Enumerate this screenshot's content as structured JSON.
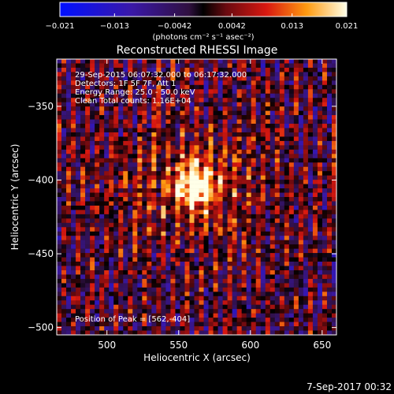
{
  "chart_data": {
    "type": "heatmap",
    "title": "Reconstructed RHESSI Image",
    "xlabel": "Heliocentric X (arcsec)",
    "ylabel": "Heliocentric Y (arcsec)",
    "xlim": [
      465,
      660
    ],
    "ylim": [
      -505,
      -318
    ],
    "x_ticks": [
      500,
      550,
      600,
      650
    ],
    "y_ticks": [
      -350,
      -400,
      -450,
      -500
    ],
    "colorbar": {
      "range": [
        -0.021,
        0.021
      ],
      "ticks": [
        -0.021,
        -0.013,
        -0.0042,
        0.0042,
        0.013,
        0.021
      ],
      "tick_labels": [
        "−0.021",
        "−0.013",
        "−0.0042",
        "0.0042",
        "0.013",
        "0.021"
      ],
      "unit_label": "(photons cm⁻² s⁻¹ asec⁻²)"
    },
    "info_lines": [
      "29-Sep-2015 06:07:32.000 to 06:17:32.000",
      "Detectors: 1F 5F 7F, Att 1",
      "Energy Range: 25.0 - 50.0 keV",
      "Clean    Total counts: 1.16E+04"
    ],
    "peak_text": "Position of Peak = [562,-404]",
    "peak": {
      "x": 562,
      "y": -404
    },
    "footer_timestamp": "7-Sep-2017 00:32"
  }
}
